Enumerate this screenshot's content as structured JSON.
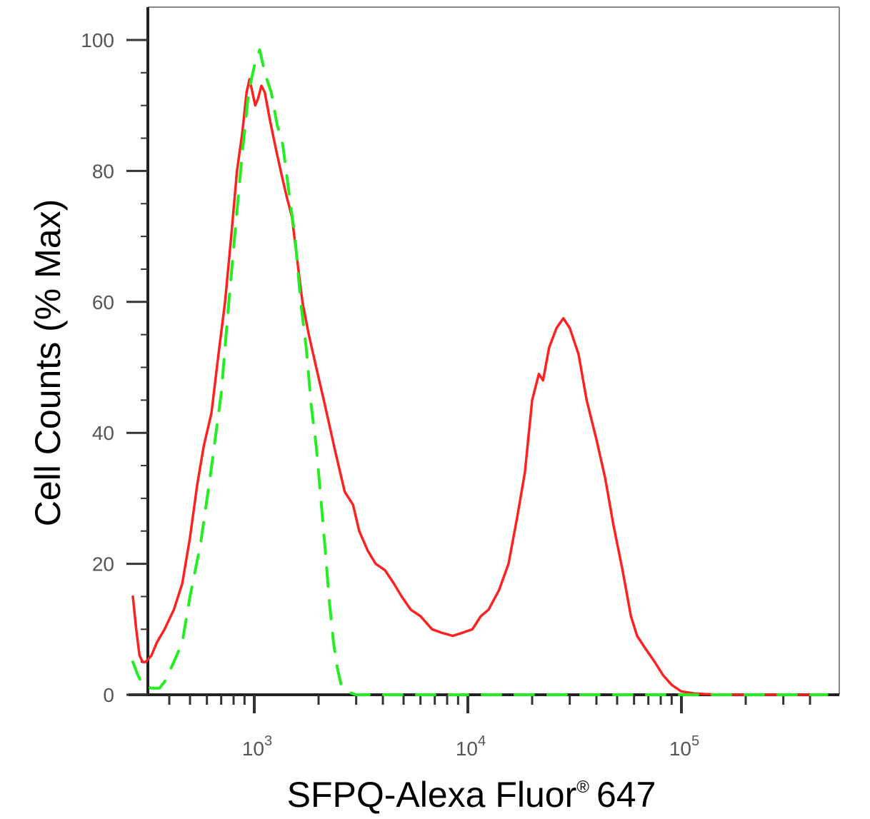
{
  "chart_data": {
    "type": "line",
    "title": "",
    "xlabel": "SFPQ-Alexa Fluor",
    "xlabel_superscript": "®",
    "xlabel_suffix": "647",
    "ylabel": "Cell Counts (% Max)",
    "x_scale": "log",
    "xlim": [
      270,
      480000
    ],
    "ylim": [
      0,
      105
    ],
    "x_ticks": [
      {
        "value": 1000,
        "base": "10",
        "exp": "3"
      },
      {
        "value": 10000,
        "base": "10",
        "exp": "4"
      },
      {
        "value": 100000,
        "base": "10",
        "exp": "5"
      }
    ],
    "y_ticks": [
      "0",
      "20",
      "40",
      "60",
      "80",
      "100"
    ],
    "grid": false,
    "legend": "none",
    "series": [
      {
        "color": "#ff2020",
        "style": "solid",
        "points": [
          [
            270,
            15
          ],
          [
            280,
            10
          ],
          [
            290,
            6
          ],
          [
            300,
            5
          ],
          [
            310,
            5
          ],
          [
            330,
            6
          ],
          [
            350,
            8
          ],
          [
            380,
            10
          ],
          [
            420,
            13
          ],
          [
            460,
            17
          ],
          [
            500,
            24
          ],
          [
            540,
            32
          ],
          [
            580,
            38
          ],
          [
            630,
            43
          ],
          [
            680,
            52
          ],
          [
            730,
            60
          ],
          [
            780,
            70
          ],
          [
            830,
            80
          ],
          [
            880,
            86
          ],
          [
            920,
            92
          ],
          [
            950,
            94
          ],
          [
            980,
            92
          ],
          [
            1010,
            90
          ],
          [
            1040,
            91
          ],
          [
            1080,
            93
          ],
          [
            1120,
            92
          ],
          [
            1180,
            88
          ],
          [
            1250,
            84
          ],
          [
            1330,
            80
          ],
          [
            1420,
            76
          ],
          [
            1500,
            73
          ],
          [
            1580,
            67
          ],
          [
            1680,
            60
          ],
          [
            1800,
            55
          ],
          [
            1950,
            50
          ],
          [
            2150,
            44
          ],
          [
            2400,
            37
          ],
          [
            2650,
            31
          ],
          [
            2900,
            29
          ],
          [
            3100,
            25
          ],
          [
            3400,
            22
          ],
          [
            3700,
            20
          ],
          [
            4100,
            19
          ],
          [
            4500,
            17
          ],
          [
            4900,
            15
          ],
          [
            5400,
            13
          ],
          [
            6000,
            12
          ],
          [
            6800,
            10
          ],
          [
            7500,
            9.5
          ],
          [
            8500,
            9
          ],
          [
            9500,
            9.5
          ],
          [
            10500,
            10
          ],
          [
            11500,
            12
          ],
          [
            12500,
            13
          ],
          [
            14000,
            16
          ],
          [
            15500,
            20
          ],
          [
            17000,
            27
          ],
          [
            18500,
            34
          ],
          [
            20000,
            45
          ],
          [
            21500,
            49
          ],
          [
            22500,
            48
          ],
          [
            24000,
            53
          ],
          [
            26000,
            56
          ],
          [
            28000,
            57.5
          ],
          [
            30000,
            56
          ],
          [
            33000,
            52
          ],
          [
            36000,
            45
          ],
          [
            40000,
            39
          ],
          [
            44000,
            33
          ],
          [
            48000,
            26
          ],
          [
            53000,
            19
          ],
          [
            58000,
            12
          ],
          [
            62000,
            9
          ],
          [
            68000,
            7
          ],
          [
            75000,
            5
          ],
          [
            82000,
            3
          ],
          [
            90000,
            1.5
          ],
          [
            100000,
            0.5
          ],
          [
            115000,
            0.2
          ],
          [
            150000,
            0
          ],
          [
            480000,
            0
          ]
        ]
      },
      {
        "color": "#22ee22",
        "style": "dashed",
        "points": [
          [
            270,
            5
          ],
          [
            285,
            3
          ],
          [
            300,
            1.5
          ],
          [
            330,
            1
          ],
          [
            360,
            1
          ],
          [
            380,
            2
          ],
          [
            420,
            5
          ],
          [
            460,
            8
          ],
          [
            500,
            15
          ],
          [
            560,
            23
          ],
          [
            620,
            33
          ],
          [
            700,
            46
          ],
          [
            760,
            60
          ],
          [
            820,
            72
          ],
          [
            880,
            83
          ],
          [
            940,
            92
          ],
          [
            1000,
            96
          ],
          [
            1060,
            98.5
          ],
          [
            1120,
            95
          ],
          [
            1200,
            92
          ],
          [
            1280,
            87
          ],
          [
            1360,
            84
          ],
          [
            1450,
            77
          ],
          [
            1550,
            70
          ],
          [
            1650,
            60
          ],
          [
            1750,
            53
          ],
          [
            1850,
            44
          ],
          [
            1950,
            38
          ],
          [
            2050,
            30
          ],
          [
            2150,
            22
          ],
          [
            2250,
            14
          ],
          [
            2350,
            8
          ],
          [
            2450,
            4
          ],
          [
            2550,
            1.5
          ],
          [
            2700,
            0.5
          ],
          [
            3000,
            0
          ],
          [
            480000,
            0
          ]
        ]
      }
    ]
  }
}
